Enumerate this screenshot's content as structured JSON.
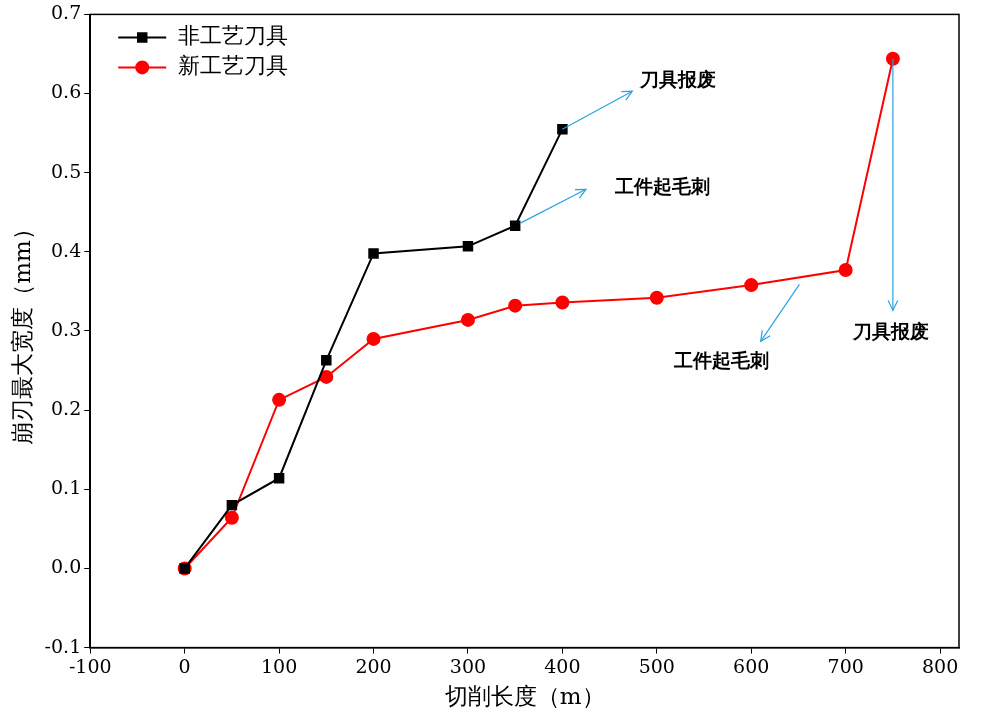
{
  "chart_data": {
    "type": "line",
    "x_label": "切削长度（m）",
    "y_label": "崩刃最大宽度（mm）",
    "xlim": [
      -100,
      820
    ],
    "xticks": [
      -100,
      0,
      100,
      200,
      300,
      400,
      500,
      600,
      700,
      800
    ],
    "ylim": [
      -0.1,
      0.7
    ],
    "yticks": [
      -0.1,
      {
        "value": 0,
        "label": "0.0"
      },
      0.1,
      0.2,
      0.3,
      0.4,
      0.5,
      0.6,
      0.7
    ],
    "grid": false,
    "legend": "upper left",
    "series": [
      {
        "name": "非工艺刀具",
        "color": "#000000",
        "marker": "square",
        "line_style": "solid",
        "x": [
          0,
          50,
          100,
          150,
          200,
          300,
          350,
          400
        ],
        "values": [
          0,
          0.08,
          0.114,
          0.263,
          0.398,
          0.407,
          0.433,
          0.555
        ]
      },
      {
        "name": "新工艺刀具",
        "color": "#ff0000",
        "marker": "circle",
        "line_style": "solid",
        "x": [
          0,
          50,
          100,
          150,
          200,
          300,
          350,
          400,
          500,
          600,
          700,
          750
        ],
        "values": [
          0,
          0.064,
          0.213,
          0.242,
          0.29,
          0.314,
          0.332,
          0.336,
          0.342,
          0.358,
          0.377,
          0.644
        ]
      }
    ],
    "annotations": [
      {
        "text": "刀具报废",
        "xy": [
          400,
          0.555
        ],
        "arrow_end": [
          474,
          0.603
        ],
        "xytext": [
          522,
          0.616
        ]
      },
      {
        "text": "工件起毛刺",
        "xy": [
          355,
          0.436
        ],
        "arrow_end": [
          425,
          0.479
        ],
        "xytext": [
          506,
          0.481
        ]
      },
      {
        "text": "工件起毛刺",
        "xy": [
          651,
          0.359
        ],
        "arrow_end": [
          610,
          0.287
        ],
        "xytext": [
          568,
          0.261
        ]
      },
      {
        "text": "刀具报废",
        "xy": [
          750,
          0.644
        ],
        "arrow_end": [
          750,
          0.326
        ],
        "xytext": [
          748,
          0.298
        ]
      }
    ]
  }
}
